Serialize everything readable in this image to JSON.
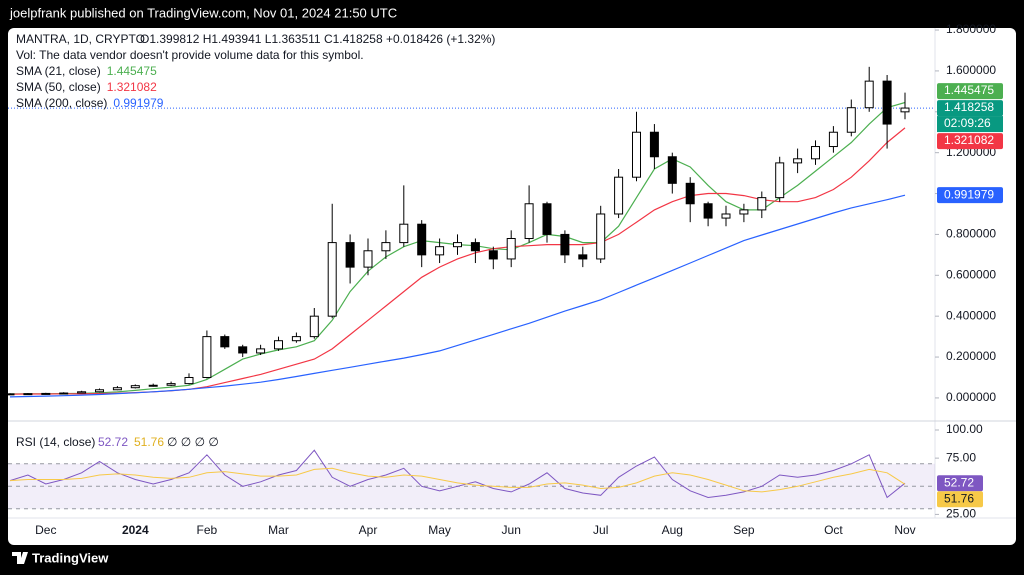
{
  "header": "joelpfrank published on TradingView.com, Nov 01, 2024 21:50 UTC",
  "footer": "TradingView",
  "chart_data": {
    "type": "candlestick",
    "title": "MANTRA, 1D, CRYPTO",
    "ohlc_text": "O1.399812 H1.493941 L1.363511 C1.418258 +0.018426 (+1.32%)",
    "subtitle": "Vol: The data vendor doesn't provide volume data for this symbol.",
    "countdown": "02:09:26",
    "categories": [
      null,
      null,
      "Dec",
      null,
      null,
      null,
      null,
      "2024",
      null,
      null,
      null,
      "Feb",
      null,
      null,
      null,
      "Mar",
      null,
      null,
      null,
      null,
      "Apr",
      null,
      null,
      null,
      "May",
      null,
      null,
      null,
      "Jun",
      null,
      null,
      null,
      null,
      "Jul",
      null,
      null,
      null,
      "Aug",
      null,
      null,
      null,
      "Sep",
      null,
      null,
      null,
      null,
      "Oct",
      null,
      null,
      null,
      "Nov"
    ],
    "open": [
      0.019,
      0.02,
      0.021,
      0.022,
      0.024,
      0.03,
      0.04,
      0.05,
      0.06,
      0.062,
      0.07,
      0.1,
      0.3,
      0.25,
      0.22,
      0.24,
      0.28,
      0.3,
      0.4,
      0.76,
      0.64,
      0.72,
      0.76,
      0.85,
      0.7,
      0.74,
      0.76,
      0.72,
      0.68,
      0.78,
      0.95,
      0.8,
      0.7,
      0.68,
      0.9,
      1.08,
      1.3,
      1.18,
      1.05,
      0.95,
      0.88,
      0.9,
      0.92,
      0.98,
      1.15,
      1.17,
      1.23,
      1.3,
      1.42,
      1.55,
      1.399812
    ],
    "high": [
      0.023,
      0.024,
      0.025,
      0.028,
      0.035,
      0.046,
      0.058,
      0.066,
      0.07,
      0.08,
      0.12,
      0.33,
      0.31,
      0.26,
      0.26,
      0.3,
      0.32,
      0.44,
      0.95,
      0.8,
      0.78,
      0.82,
      1.04,
      0.87,
      0.78,
      0.8,
      0.78,
      0.74,
      0.82,
      1.04,
      0.96,
      0.82,
      0.74,
      0.94,
      1.12,
      1.4,
      1.34,
      1.2,
      1.08,
      0.96,
      0.94,
      0.95,
      1.01,
      1.18,
      1.22,
      1.26,
      1.33,
      1.46,
      1.62,
      1.58,
      1.493941
    ],
    "low": [
      0.017,
      0.018,
      0.019,
      0.02,
      0.022,
      0.028,
      0.038,
      0.046,
      0.055,
      0.058,
      0.066,
      0.095,
      0.24,
      0.2,
      0.21,
      0.23,
      0.27,
      0.29,
      0.39,
      0.56,
      0.6,
      0.68,
      0.74,
      0.64,
      0.66,
      0.7,
      0.66,
      0.63,
      0.64,
      0.76,
      0.76,
      0.66,
      0.64,
      0.66,
      0.88,
      1.06,
      1.12,
      1.0,
      0.86,
      0.84,
      0.84,
      0.86,
      0.88,
      0.96,
      1.1,
      1.14,
      1.2,
      1.28,
      1.4,
      1.22,
      1.363511
    ],
    "close": [
      0.02,
      0.021,
      0.022,
      0.024,
      0.03,
      0.04,
      0.05,
      0.06,
      0.062,
      0.07,
      0.1,
      0.3,
      0.25,
      0.22,
      0.24,
      0.28,
      0.3,
      0.4,
      0.76,
      0.64,
      0.72,
      0.76,
      0.85,
      0.7,
      0.74,
      0.76,
      0.72,
      0.68,
      0.78,
      0.95,
      0.8,
      0.7,
      0.68,
      0.9,
      1.08,
      1.3,
      1.18,
      1.05,
      0.95,
      0.88,
      0.9,
      0.92,
      0.98,
      1.15,
      1.17,
      1.23,
      1.3,
      1.42,
      1.55,
      1.34,
      1.418258
    ],
    "up_color": "#ffffff",
    "down_color": "#000000",
    "wick_color": "#000000",
    "price_color": "#089981",
    "series": [
      {
        "name": "SMA (21, close)",
        "color": "#4caf50",
        "values": [
          0.019,
          0.02,
          0.02,
          0.021,
          0.022,
          0.025,
          0.03,
          0.037,
          0.045,
          0.053,
          0.062,
          0.09,
          0.14,
          0.19,
          0.215,
          0.235,
          0.25,
          0.28,
          0.38,
          0.52,
          0.62,
          0.69,
          0.74,
          0.77,
          0.76,
          0.75,
          0.745,
          0.73,
          0.725,
          0.76,
          0.8,
          0.79,
          0.76,
          0.76,
          0.84,
          0.98,
          1.12,
          1.17,
          1.13,
          1.04,
          0.96,
          0.92,
          0.92,
          0.98,
          1.04,
          1.11,
          1.18,
          1.25,
          1.34,
          1.42,
          1.445475
        ]
      },
      {
        "name": "SMA (50, close)",
        "color": "#f23645",
        "values": [
          0.018,
          0.019,
          0.019,
          0.02,
          0.02,
          0.021,
          0.023,
          0.026,
          0.03,
          0.035,
          0.042,
          0.055,
          0.075,
          0.095,
          0.115,
          0.14,
          0.165,
          0.19,
          0.24,
          0.31,
          0.38,
          0.45,
          0.52,
          0.59,
          0.64,
          0.68,
          0.71,
          0.73,
          0.74,
          0.745,
          0.75,
          0.75,
          0.75,
          0.76,
          0.8,
          0.86,
          0.92,
          0.96,
          0.99,
          1.0,
          1.0,
          0.99,
          0.97,
          0.96,
          0.96,
          0.98,
          1.02,
          1.08,
          1.16,
          1.25,
          1.321082
        ]
      },
      {
        "name": "SMA (200, close)",
        "color": "#2962ff",
        "values": [
          0.005,
          0.007,
          0.009,
          0.011,
          0.014,
          0.017,
          0.021,
          0.025,
          0.03,
          0.036,
          0.042,
          0.05,
          0.058,
          0.067,
          0.077,
          0.09,
          0.105,
          0.12,
          0.135,
          0.15,
          0.165,
          0.18,
          0.195,
          0.212,
          0.23,
          0.257,
          0.284,
          0.311,
          0.338,
          0.365,
          0.395,
          0.425,
          0.452,
          0.48,
          0.516,
          0.552,
          0.588,
          0.624,
          0.66,
          0.697,
          0.733,
          0.77,
          0.797,
          0.824,
          0.851,
          0.878,
          0.905,
          0.93,
          0.95,
          0.97,
          0.991979
        ]
      }
    ],
    "ylim": [
      -0.108,
      1.81
    ],
    "yticks": [
      {
        "value": 0,
        "label": "0.000000"
      },
      {
        "value": 0.2,
        "label": "0.200000"
      },
      {
        "value": 0.4,
        "label": "0.400000"
      },
      {
        "value": 0.6,
        "label": "0.600000"
      },
      {
        "value": 0.8,
        "label": "0.800000"
      },
      {
        "value": 1.0,
        "label": "1.000000"
      },
      {
        "value": 1.2,
        "label": "1.200000"
      },
      {
        "value": 1.4,
        "label": "1.400000"
      },
      {
        "value": 1.6,
        "label": "1.600000"
      },
      {
        "value": 1.8,
        "label": "1.800000"
      }
    ],
    "rsi": {
      "name": "RSI (14, close)",
      "color": "#7e57c2",
      "extra": "∅ ∅ ∅ ∅",
      "values": [
        55,
        60,
        52,
        56,
        62,
        72,
        62,
        56,
        52,
        56,
        62,
        78,
        60,
        50,
        54,
        60,
        64,
        82,
        58,
        50,
        56,
        60,
        66,
        50,
        46,
        50,
        54,
        48,
        45,
        52,
        62,
        48,
        44,
        42,
        58,
        68,
        76,
        56,
        46,
        40,
        42,
        45,
        50,
        60,
        58,
        60,
        64,
        70,
        78,
        40,
        52.72
      ],
      "ma_color": "#f7c948",
      "ma_values": [
        55,
        56,
        56,
        56,
        57,
        60,
        61,
        60,
        58,
        57,
        58,
        62,
        63,
        61,
        59,
        59,
        60,
        65,
        66,
        62,
        59,
        58,
        60,
        59,
        56,
        53,
        51,
        50,
        49,
        49,
        52,
        53,
        51,
        48,
        49,
        53,
        59,
        62,
        60,
        56,
        51,
        46,
        45,
        47,
        50,
        54,
        58,
        61,
        65,
        62,
        51.76
      ],
      "levels": [
        70,
        50,
        30
      ],
      "ylim": [
        21.8,
        107.1
      ],
      "yticks": [
        {
          "value": 100,
          "label": "100.00"
        },
        {
          "value": 75,
          "label": "75.00"
        },
        {
          "value": 25,
          "label": "25.00"
        }
      ]
    }
  }
}
